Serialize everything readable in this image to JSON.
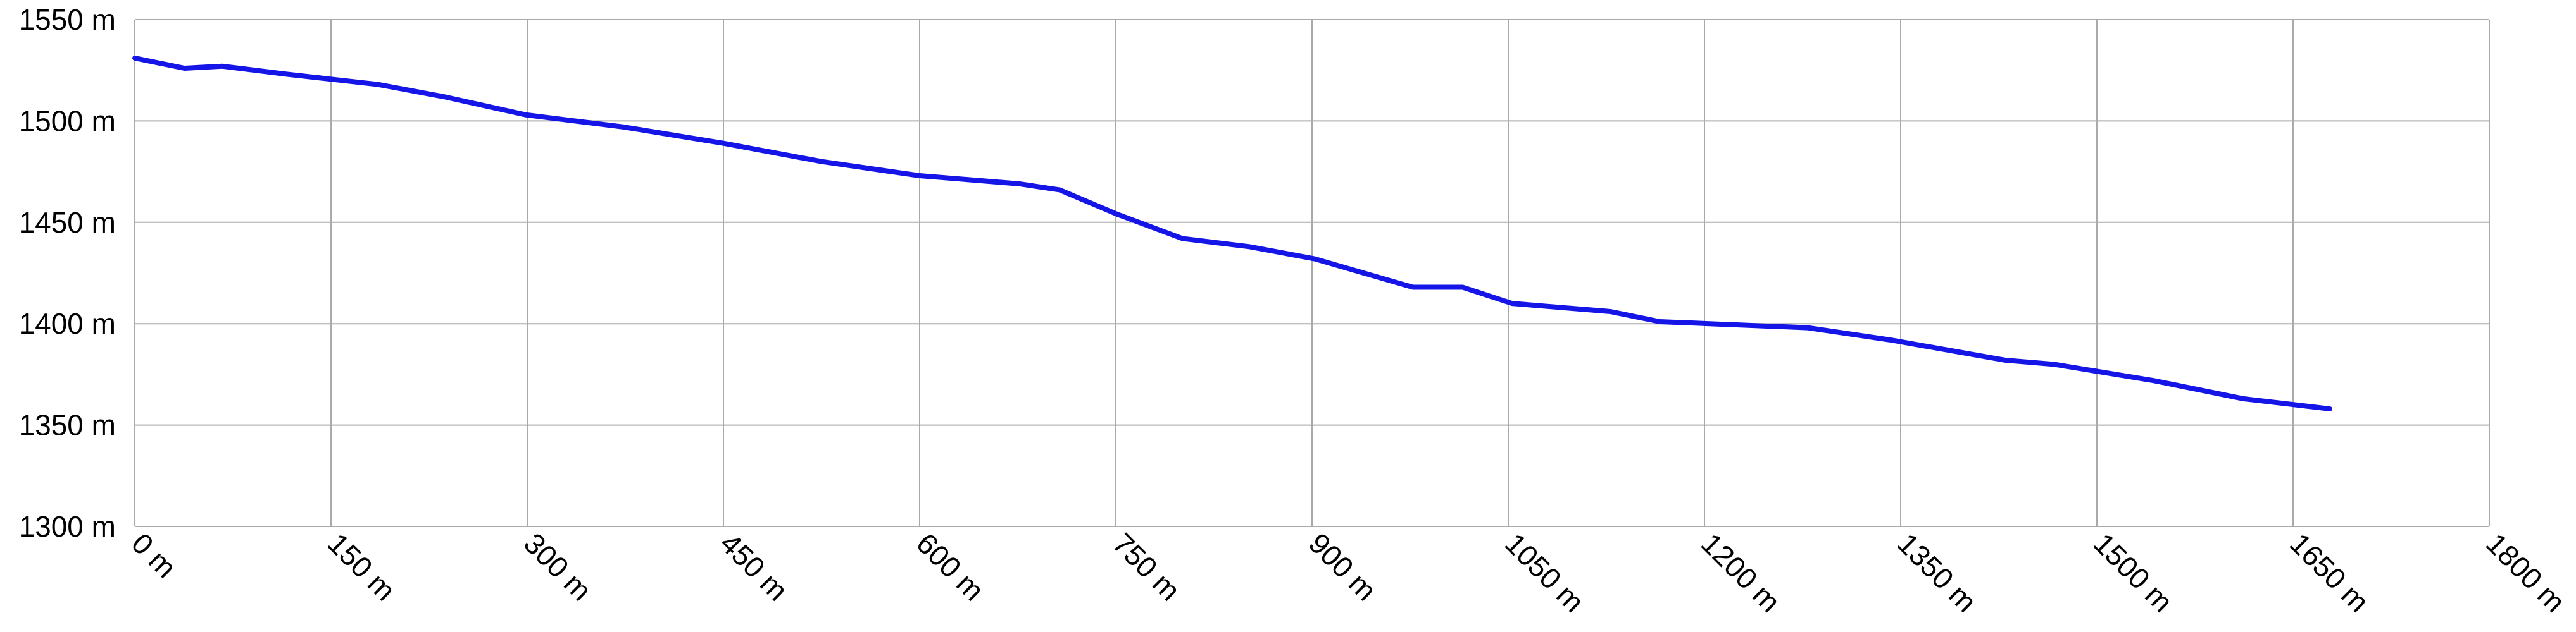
{
  "chart_data": {
    "type": "line",
    "x": [
      0,
      38,
      67,
      117,
      186,
      236,
      299,
      374,
      450,
      525,
      600,
      676,
      707,
      751,
      801,
      852,
      902,
      977,
      1015,
      1053,
      1128,
      1166,
      1204,
      1279,
      1342,
      1430,
      1467,
      1543,
      1612,
      1678
    ],
    "series": [
      {
        "color": "#1515e8",
        "values": [
          1531,
          1526,
          1527,
          1523,
          1518,
          1512,
          1503,
          1497,
          1489,
          1480,
          1473,
          1469,
          1466,
          1454,
          1442,
          1438,
          1432,
          1418,
          1418,
          1410,
          1406,
          1401,
          1400,
          1398,
          1392,
          1382,
          1380,
          1372,
          1363,
          1358
        ]
      }
    ],
    "xlim": [
      0,
      1800
    ],
    "xticks": [
      {
        "value": 0,
        "label": "0 m"
      },
      {
        "value": 150,
        "label": "150 m"
      },
      {
        "value": 300,
        "label": "300 m"
      },
      {
        "value": 450,
        "label": "450 m"
      },
      {
        "value": 600,
        "label": "600 m"
      },
      {
        "value": 750,
        "label": "750 m"
      },
      {
        "value": 900,
        "label": "900 m"
      },
      {
        "value": 1050,
        "label": "1050 m"
      },
      {
        "value": 1200,
        "label": "1200 m"
      },
      {
        "value": 1350,
        "label": "1350 m"
      },
      {
        "value": 1500,
        "label": "1500 m"
      },
      {
        "value": 1650,
        "label": "1650 m"
      },
      {
        "value": 1800,
        "label": "1800 m"
      }
    ],
    "ylim": [
      1300,
      1550
    ],
    "yticks": [
      {
        "value": 1300,
        "label": "1300 m"
      },
      {
        "value": 1350,
        "label": "1350 m"
      },
      {
        "value": 1400,
        "label": "1400 m"
      },
      {
        "value": 1450,
        "label": "1450 m"
      },
      {
        "value": 1500,
        "label": "1500 m"
      },
      {
        "value": 1550,
        "label": "1550 m"
      }
    ],
    "grid": true
  }
}
